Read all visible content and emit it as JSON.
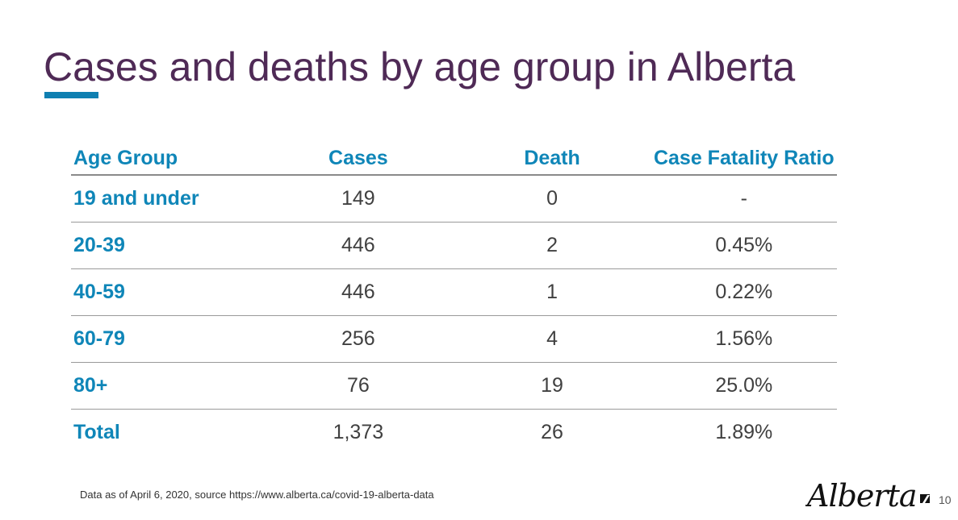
{
  "slide": {
    "title": "Cases and deaths by age group in Alberta",
    "accent_color": "#0f7fb1",
    "title_color": "#4f2a56",
    "page_number": "10"
  },
  "table": {
    "headers": {
      "age_group": "Age Group",
      "cases": "Cases",
      "death": "Death",
      "cfr": "Case Fatality Ratio"
    },
    "rows": [
      {
        "age_group": "19 and under",
        "cases": "149",
        "death": "0",
        "cfr": "-"
      },
      {
        "age_group": "20-39",
        "cases": "446",
        "death": "2",
        "cfr": "0.45%"
      },
      {
        "age_group": "40-59",
        "cases": "446",
        "death": "1",
        "cfr": "0.22%"
      },
      {
        "age_group": "60-79",
        "cases": "256",
        "death": "4",
        "cfr": "1.56%"
      },
      {
        "age_group": "80+",
        "cases": "76",
        "death": "19",
        "cfr": "25.0%"
      },
      {
        "age_group": "Total",
        "cases": "1,373",
        "death": "26",
        "cfr": "1.89%"
      }
    ],
    "header_color": "#0f86b8"
  },
  "footer": {
    "footnote": "Data as of April 6, 2020, source https://www.alberta.ca/covid-19-alberta-data",
    "logo_text": "Alberta"
  }
}
